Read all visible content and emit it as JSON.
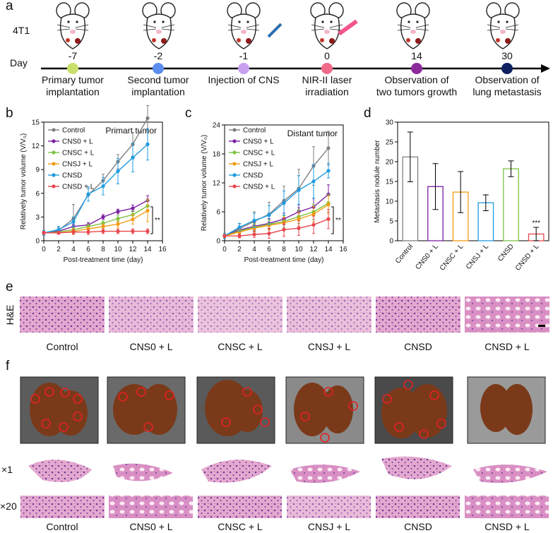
{
  "panel_labels": [
    "a",
    "b",
    "c",
    "d",
    "e",
    "f"
  ],
  "timeline": {
    "cell_line": "4T1",
    "axis_label": "Day",
    "events": [
      {
        "day": -7,
        "color": "#c8e06a",
        "label": [
          "Primary tumor",
          "implantation"
        ]
      },
      {
        "day": -2,
        "color": "#5b8ef0",
        "label": [
          "Second tumor",
          "implantation"
        ]
      },
      {
        "day": -1,
        "color": "#c9a0f0",
        "label": [
          "Injection of CNS"
        ]
      },
      {
        "day": 0,
        "color": "#f06a8a",
        "label": [
          "NIR-II laser",
          "irradiation"
        ]
      },
      {
        "day": 14,
        "color": "#8b2b9a",
        "label": [
          "Observation of",
          "two tumors growth"
        ]
      },
      {
        "day": 30,
        "color": "#0f2060",
        "label": [
          "Observation of",
          "lung metastasis"
        ]
      }
    ]
  },
  "chart_data": [
    {
      "type": "line",
      "annotation": "Primart tumor",
      "significance": "**",
      "xlabel": "Post-treatment time (day)",
      "ylabel": "Relatively tumor volume (V/V₀)",
      "x": [
        0,
        2,
        4,
        6,
        8,
        10,
        12,
        14
      ],
      "xlim": [
        0,
        16
      ],
      "xticks": [
        0,
        2,
        4,
        6,
        8,
        10,
        12,
        14,
        16
      ],
      "ylim": [
        0,
        15
      ],
      "yticks": [
        0,
        3,
        6,
        9,
        12,
        15
      ],
      "series": [
        {
          "name": "Control",
          "color": "#808080",
          "values": [
            1,
            1.3,
            2.8,
            5.8,
            7.6,
            10,
            12.2,
            15.5
          ],
          "errors": [
            0.3,
            0.4,
            1.8,
            0.8,
            0.8,
            0.9,
            1.5,
            1.6
          ]
        },
        {
          "name": "CNS0 + L",
          "color": "#7a1fa2",
          "values": [
            1,
            1.2,
            1.8,
            2,
            3,
            3.7,
            4.1,
            5.1
          ],
          "errors": [
            0.2,
            0.2,
            0.3,
            0.3,
            0.3,
            0.3,
            0.4,
            0.6
          ]
        },
        {
          "name": "CNSC + L",
          "color": "#7dc242",
          "values": [
            1,
            1.1,
            1.4,
            1.8,
            2.2,
            2.8,
            3.3,
            4.4
          ],
          "errors": [
            0.2,
            0.2,
            0.3,
            0.3,
            0.3,
            0.4,
            0.5,
            0.7
          ]
        },
        {
          "name": "CNSJ + L",
          "color": "#f39c12",
          "values": [
            1,
            1,
            1.2,
            1.5,
            1.8,
            2.1,
            2.7,
            3.8
          ],
          "errors": [
            0.2,
            0.2,
            0.3,
            0.3,
            0.3,
            0.4,
            0.6,
            1.4
          ]
        },
        {
          "name": "CNSD",
          "color": "#1e9be0",
          "values": [
            1,
            1.4,
            2.4,
            5.9,
            6.9,
            8.8,
            10.5,
            12.2
          ],
          "errors": [
            0.3,
            0.4,
            0.6,
            0.9,
            1.1,
            1.6,
            1.8,
            2
          ]
        },
        {
          "name": "CNSD + L",
          "color": "#e8474e",
          "values": [
            1,
            1,
            1.1,
            1.1,
            1.2,
            1.2,
            1.2,
            1.2
          ],
          "errors": [
            0.2,
            0.2,
            0.3,
            0.3,
            0.3,
            0.3,
            0.3,
            0.3
          ]
        }
      ]
    },
    {
      "type": "line",
      "annotation": "Distant tumor",
      "significance": "**",
      "xlabel": "Post-treatment time (day)",
      "ylabel": "Relatively tumor volume (V/V₀)",
      "x": [
        0,
        2,
        4,
        6,
        8,
        10,
        12,
        14
      ],
      "xlim": [
        0,
        16
      ],
      "xticks": [
        0,
        2,
        4,
        6,
        8,
        10,
        12,
        14,
        16
      ],
      "ylim": [
        0,
        24
      ],
      "yticks": [
        0,
        6,
        12,
        18,
        24
      ],
      "series": [
        {
          "name": "Control",
          "color": "#808080",
          "values": [
            1,
            2.5,
            4,
            5.5,
            8.3,
            10.8,
            15.5,
            19.2
          ],
          "errors": [
            0.5,
            1,
            2,
            2.5,
            3,
            4,
            4,
            3.5
          ]
        },
        {
          "name": "CNS0 + L",
          "color": "#7a1fa2",
          "values": [
            1,
            2.2,
            3,
            3.6,
            4.5,
            6,
            7,
            9.6
          ],
          "errors": [
            0.4,
            0.6,
            0.8,
            1,
            1.2,
            1.5,
            1.8,
            2
          ]
        },
        {
          "name": "CNSC + L",
          "color": "#7dc242",
          "values": [
            1,
            2,
            2.8,
            3.4,
            4,
            5,
            6,
            7.8
          ],
          "errors": [
            0.4,
            0.5,
            0.8,
            1,
            1.2,
            1.4,
            1.6,
            1.8
          ]
        },
        {
          "name": "CNSJ + L",
          "color": "#f39c12",
          "values": [
            1,
            1.8,
            2.6,
            3.2,
            3.7,
            4.5,
            5.5,
            7.5
          ],
          "errors": [
            0.4,
            0.5,
            0.8,
            1,
            1.2,
            1.4,
            1.6,
            1.8
          ]
        },
        {
          "name": "CNSD",
          "color": "#1e9be0",
          "values": [
            1,
            2.8,
            4.2,
            5.3,
            7.8,
            10.5,
            12.3,
            14.5
          ],
          "errors": [
            0.5,
            0.8,
            1.5,
            2,
            2.5,
            3,
            3.5,
            1.5
          ]
        },
        {
          "name": "CNSD + L",
          "color": "#e8474e",
          "values": [
            1,
            1,
            1.3,
            1.5,
            2.3,
            2.6,
            3.3,
            4.5
          ],
          "errors": [
            0.3,
            0.4,
            0.6,
            1,
            1.4,
            1.5,
            1.8,
            2
          ]
        }
      ]
    },
    {
      "type": "bar",
      "significance": "***",
      "ylabel": "Metastasis nodule number",
      "categories": [
        "Control",
        "CNS0 + L",
        "CNSC + L",
        "CNSJ + L",
        "CNSD",
        "CNSD + L"
      ],
      "values": [
        21.2,
        13.7,
        12.3,
        9.6,
        18.2,
        1.7
      ],
      "errors": [
        6.3,
        5.8,
        5.2,
        2,
        2,
        1.7
      ],
      "colors": [
        "#808080",
        "#7a1fa2",
        "#f39c12",
        "#1e9be0",
        "#7dc242",
        "#e8474e"
      ],
      "ylim": [
        0,
        30
      ],
      "yticks": [
        0,
        5,
        10,
        15,
        20,
        25,
        30
      ]
    }
  ],
  "histology": {
    "stain": "H&E",
    "labels": [
      "Control",
      "CNS0 + L",
      "CNSC + L",
      "CNSJ + L",
      "CNSD",
      "CNSD + L"
    ]
  },
  "lungs": {
    "magnifications": [
      "×1",
      "×20"
    ],
    "labels": [
      "Control",
      "CNS0 + L",
      "CNSC + L",
      "CNSJ + L",
      "CNSD",
      "CNSD + L"
    ]
  }
}
